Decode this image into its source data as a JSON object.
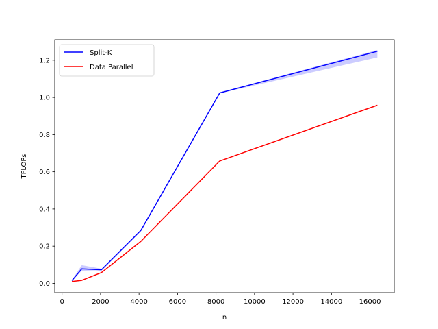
{
  "chart_data": {
    "type": "line",
    "xlabel": "n",
    "ylabel": "TFLOPs",
    "xlim": [
      -380,
      17260
    ],
    "ylim": [
      -0.05,
      1.31
    ],
    "x_ticks": [
      0,
      2000,
      4000,
      6000,
      8000,
      10000,
      12000,
      14000,
      16000
    ],
    "y_ticks": [
      0.0,
      0.2,
      0.4,
      0.6,
      0.8,
      1.0,
      1.2
    ],
    "x_tick_labels": [
      "0",
      "2000",
      "4000",
      "6000",
      "8000",
      "10000",
      "12000",
      "14000",
      "16000"
    ],
    "y_tick_labels": [
      "0.0",
      "0.2",
      "0.4",
      "0.6",
      "0.8",
      "1.0",
      "1.2"
    ],
    "grid": false,
    "legend_position": "top-left",
    "x": [
      512,
      1024,
      2048,
      4096,
      8192,
      16384
    ],
    "series": [
      {
        "name": "Split-K",
        "color": "#0000ff",
        "values": [
          0.015,
          0.078,
          0.073,
          0.285,
          1.024,
          1.248
        ],
        "band_lower": [
          0.012,
          0.068,
          0.07,
          0.28,
          1.022,
          1.215
        ],
        "band_upper": [
          0.018,
          0.098,
          0.079,
          0.29,
          1.027,
          1.255
        ],
        "band_color": "#0000ff"
      },
      {
        "name": "Data Parallel",
        "color": "#ff0000",
        "values": [
          0.01,
          0.016,
          0.058,
          0.226,
          0.658,
          0.958
        ]
      }
    ]
  }
}
